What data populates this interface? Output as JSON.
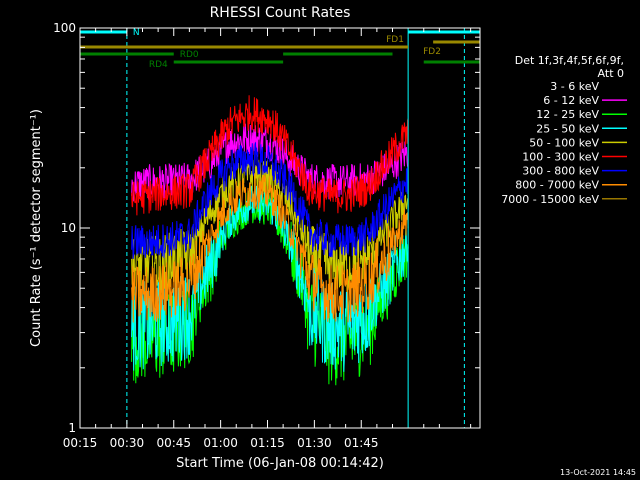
{
  "chart_data": {
    "type": "line",
    "title": "RHESSI Count Rates",
    "xlabel": "Start Time (06-Jan-08 00:14:42)",
    "ylabel": "Count Rate (s⁻¹ detector segment⁻¹)",
    "x_unit": "minutes after 00:15",
    "xlim": [
      0,
      128
    ],
    "ylim": [
      1,
      100
    ],
    "yscale": "log",
    "x_ticks": [
      {
        "t": 0,
        "label": "00:15"
      },
      {
        "t": 15,
        "label": "00:30"
      },
      {
        "t": 30,
        "label": "00:45"
      },
      {
        "t": 45,
        "label": "01:00"
      },
      {
        "t": 60,
        "label": "01:15"
      },
      {
        "t": 75,
        "label": "01:30"
      },
      {
        "t": 90,
        "label": "01:45"
      }
    ],
    "y_ticks": [
      {
        "v": 1,
        "label": "1"
      },
      {
        "v": 10,
        "label": "10"
      },
      {
        "v": 100,
        "label": "100"
      }
    ],
    "legend_title": [
      "Det 1f,3f,4f,5f,6f,9f,",
      "Att 0"
    ],
    "legend_placement": "right",
    "data_start": 16.5,
    "data_end": 105,
    "series": [
      {
        "name": "3 - 6 keV",
        "color": "#000000",
        "values": [
          2.6,
          2.6,
          2.7,
          3.2,
          5.5,
          10.0,
          12.5,
          12.0,
          7.5,
          3.3,
          2.4,
          2.4,
          3.0,
          4.5,
          7.5
        ]
      },
      {
        "name": "6 - 12 keV",
        "color": "#ff00ff",
        "values": [
          16.5,
          17.0,
          17.0,
          17.5,
          21.0,
          27.0,
          28.0,
          27.0,
          22.0,
          17.5,
          17.0,
          17.0,
          17.5,
          20.0,
          24.0
        ]
      },
      {
        "name": "12 - 25 keV",
        "color": "#00ff00",
        "values": [
          2.8,
          2.8,
          2.9,
          3.4,
          6.0,
          10.5,
          13.0,
          12.5,
          8.0,
          3.6,
          2.7,
          2.7,
          3.3,
          5.0,
          8.0
        ]
      },
      {
        "name": "25 - 50 keV",
        "color": "#00ffff",
        "values": [
          3.2,
          3.3,
          3.4,
          3.8,
          6.5,
          11.0,
          13.5,
          13.0,
          8.5,
          4.0,
          3.2,
          3.2,
          3.8,
          5.5,
          8.5
        ]
      },
      {
        "name": "50 - 100 keV",
        "color": "#cccc00",
        "values": [
          6.5,
          6.5,
          6.8,
          7.2,
          12.0,
          16.5,
          18.5,
          17.5,
          13.0,
          7.5,
          6.5,
          6.5,
          7.2,
          10.0,
          14.0
        ]
      },
      {
        "name": "100 - 300 keV",
        "color": "#ff0000",
        "values": [
          14.0,
          14.5,
          15.0,
          15.5,
          23.0,
          33.0,
          38.0,
          35.0,
          24.0,
          15.5,
          14.5,
          14.5,
          16.0,
          22.0,
          30.0
        ]
      },
      {
        "name": "300 - 800 keV",
        "color": "#0000ff",
        "values": [
          8.5,
          8.5,
          8.8,
          9.3,
          15.0,
          20.5,
          22.5,
          21.0,
          16.0,
          9.5,
          8.6,
          8.6,
          9.3,
          13.0,
          17.5
        ]
      },
      {
        "name": "800 - 7000 keV",
        "color": "#ff8c00",
        "values": [
          4.6,
          4.7,
          4.9,
          5.4,
          9.0,
          13.5,
          15.5,
          14.8,
          10.0,
          5.6,
          4.7,
          4.7,
          5.4,
          7.5,
          11.0
        ]
      },
      {
        "name": "7000 - 15000 keV",
        "color": "#997700",
        "values": []
      }
    ],
    "vertical_lines": [
      {
        "t": 0,
        "color": "#00ffff",
        "dashed": false
      },
      {
        "t": 15,
        "color": "#00ffff",
        "dashed": true
      },
      {
        "t": 105,
        "color": "#00ffff",
        "dashed": false
      },
      {
        "t": 123,
        "color": "#00ffff",
        "dashed": true
      }
    ],
    "bars": [
      {
        "label": "N",
        "color": "#00ffff",
        "t0": 0,
        "t1": 15,
        "level": 1,
        "label_pos": "right"
      },
      {
        "label": "",
        "color": "#00ffff",
        "t0": 105,
        "t1": 128,
        "level": 1
      },
      {
        "label": "FD1",
        "color": "#998800",
        "t0": 0,
        "t1": 105,
        "level": 2.5,
        "label_pos": "start-below-end"
      },
      {
        "label": "FD2",
        "color": "#998800",
        "t0": 113,
        "t1": 128,
        "level": 2,
        "label_pos": "below-start"
      },
      {
        "label": "RD0",
        "color": "#008000",
        "t0": 0,
        "t1": 30,
        "level": 3.2,
        "label_pos": "right"
      },
      {
        "label": "RD4",
        "color": "#008000",
        "t0": 30,
        "t1": 65,
        "level": 4,
        "label_pos": "left"
      },
      {
        "label": "",
        "color": "#008000",
        "t0": 65,
        "t1": 100,
        "level": 3.2
      },
      {
        "label": "",
        "color": "#008000",
        "t0": 110,
        "t1": 128,
        "level": 4
      }
    ]
  },
  "footer": {
    "timestamp": "13-Oct-2021 14:45"
  }
}
